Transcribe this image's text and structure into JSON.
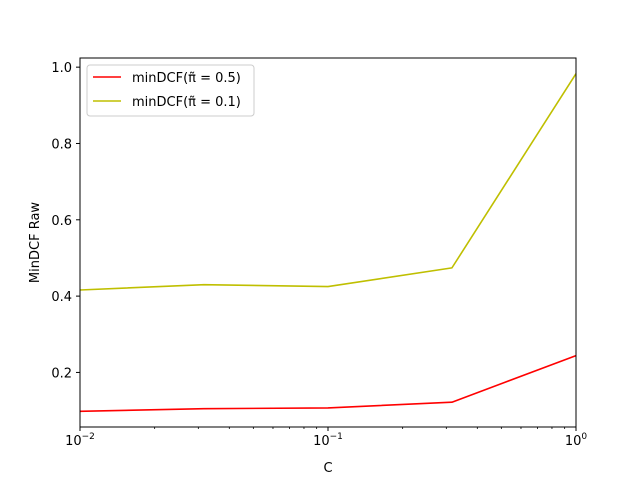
{
  "chart_data": {
    "type": "line",
    "title": "",
    "xlabel": "C",
    "ylabel": "MinDCF Raw",
    "xscale": "log",
    "xlim": [
      0.01,
      1
    ],
    "ylim": [
      0.057,
      1.024
    ],
    "grid": false,
    "legend_position": "top-left",
    "x": [
      0.01,
      0.0316,
      0.1,
      0.316,
      1.0
    ],
    "x_ticks": [
      {
        "value": 0.01,
        "base": "10",
        "exp": "−2"
      },
      {
        "value": 0.1,
        "base": "10",
        "exp": "−1"
      },
      {
        "value": 1,
        "base": "10",
        "exp": "0"
      }
    ],
    "y_ticks": [
      {
        "value": 0.2,
        "label": "0.2"
      },
      {
        "value": 0.4,
        "label": "0.4"
      },
      {
        "value": 0.6,
        "label": "0.6"
      },
      {
        "value": 0.8,
        "label": "0.8"
      },
      {
        "value": 1.0,
        "label": "1.0"
      }
    ],
    "series": [
      {
        "name": "minDCF(π̃ = 0.5)",
        "color": "#ff0000",
        "values": [
          0.098,
          0.105,
          0.107,
          0.122,
          0.244
        ]
      },
      {
        "name": "minDCF(π̃ = 0.1)",
        "color": "#bfbf00",
        "values": [
          0.416,
          0.43,
          0.425,
          0.474,
          0.983
        ]
      }
    ]
  }
}
